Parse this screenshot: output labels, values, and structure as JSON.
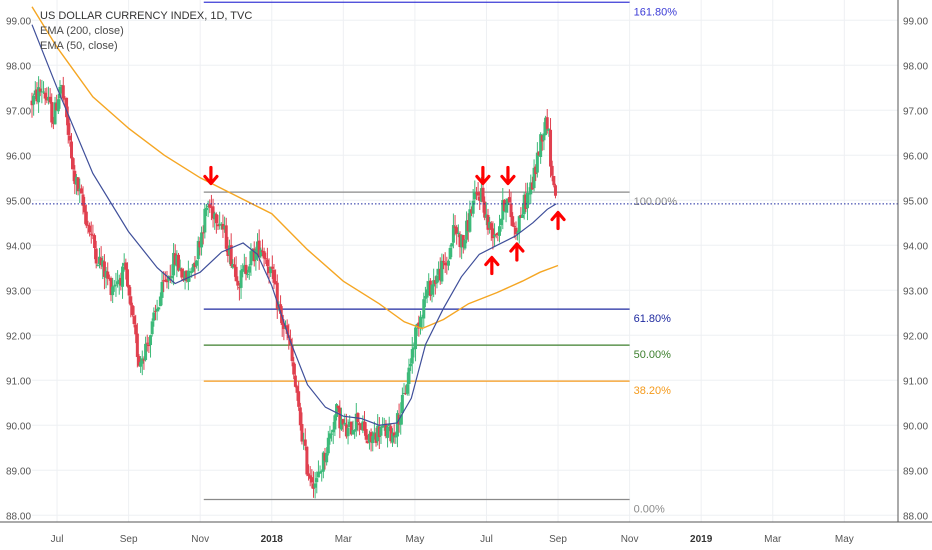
{
  "legend": {
    "title": "US DOLLAR CURRENCY INDEX, 1D, TVC",
    "ema200": "EMA (200, close)",
    "ema50": "EMA (50, close)"
  },
  "colors": {
    "up": "#3dba7a",
    "down": "#e0404f",
    "ema200": "#f5a623",
    "ema50": "#3f4f9a",
    "fib_1618": "#3b3bd6",
    "fib_100": "#8a8a8a",
    "fib_618": "#1f2aa0",
    "fib_50": "#3d7f2d",
    "fib_382": "#f59a1b",
    "fib_0": "#8a8a8a",
    "arrow": "#ff0000",
    "current_price_line": "#1f2aa0",
    "grid": "#eef0f3"
  },
  "chart_data": {
    "type": "candlestick",
    "instrument": "US DOLLAR CURRENCY INDEX",
    "timeframe": "1D",
    "source": "TVC",
    "x_ticks": [
      {
        "label": "Jul",
        "bold": false
      },
      {
        "label": "Sep",
        "bold": false
      },
      {
        "label": "Nov",
        "bold": false
      },
      {
        "label": "2018",
        "bold": true
      },
      {
        "label": "Mar",
        "bold": false
      },
      {
        "label": "May",
        "bold": false
      },
      {
        "label": "Jul",
        "bold": false
      },
      {
        "label": "Sep",
        "bold": false
      },
      {
        "label": "Nov",
        "bold": false
      },
      {
        "label": "2019",
        "bold": true
      },
      {
        "label": "Mar",
        "bold": false
      },
      {
        "label": "May",
        "bold": false
      }
    ],
    "x_tick_months": [
      1.0,
      3.0,
      5.0,
      7.0,
      9.0,
      11.0,
      13.0,
      15.0,
      17.0,
      19.0,
      21.0,
      23.0
    ],
    "x_range_months": [
      0.3,
      24.5
    ],
    "y_ticks": [
      "99.00",
      "98.00",
      "97.00",
      "96.00",
      "95.00",
      "94.00",
      "93.00",
      "92.00",
      "91.00",
      "90.00",
      "89.00",
      "88.00"
    ],
    "y_tick_values": [
      99,
      98,
      97,
      96,
      95,
      94,
      93,
      92,
      91,
      90,
      89,
      88
    ],
    "ylim": [
      87.85,
      99.45
    ],
    "current_price": 94.92,
    "price_path": [
      [
        0.3,
        97.2
      ],
      [
        0.6,
        97.5
      ],
      [
        0.9,
        96.8
      ],
      [
        1.1,
        97.6
      ],
      [
        1.25,
        96.9
      ],
      [
        1.45,
        95.6
      ],
      [
        1.75,
        94.8
      ],
      [
        2.1,
        93.8
      ],
      [
        2.5,
        93.1
      ],
      [
        2.9,
        93.4
      ],
      [
        3.1,
        92.3
      ],
      [
        3.3,
        91.4
      ],
      [
        3.6,
        92.0
      ],
      [
        3.9,
        92.9
      ],
      [
        4.3,
        93.7
      ],
      [
        4.6,
        93.2
      ],
      [
        4.9,
        93.8
      ],
      [
        5.2,
        94.9
      ],
      [
        5.55,
        94.6
      ],
      [
        5.8,
        93.9
      ],
      [
        6.1,
        93.2
      ],
      [
        6.4,
        93.7
      ],
      [
        6.7,
        94.0
      ],
      [
        6.95,
        93.5
      ],
      [
        7.25,
        92.4
      ],
      [
        7.5,
        91.8
      ],
      [
        7.75,
        90.3
      ],
      [
        8.0,
        89.0
      ],
      [
        8.25,
        88.7
      ],
      [
        8.5,
        89.4
      ],
      [
        8.8,
        90.3
      ],
      [
        9.1,
        89.8
      ],
      [
        9.4,
        90.2
      ],
      [
        9.7,
        89.6
      ],
      [
        10.0,
        89.9
      ],
      [
        10.4,
        89.8
      ],
      [
        10.7,
        90.6
      ],
      [
        11.0,
        92.0
      ],
      [
        11.3,
        92.9
      ],
      [
        11.6,
        93.3
      ],
      [
        11.9,
        93.6
      ],
      [
        12.1,
        94.4
      ],
      [
        12.35,
        94.0
      ],
      [
        12.6,
        94.9
      ],
      [
        12.85,
        95.2
      ],
      [
        13.05,
        94.4
      ],
      [
        13.3,
        94.3
      ],
      [
        13.55,
        95.1
      ],
      [
        13.8,
        94.3
      ],
      [
        14.05,
        94.9
      ],
      [
        14.3,
        95.4
      ],
      [
        14.55,
        96.5
      ],
      [
        14.7,
        96.8
      ],
      [
        14.85,
        95.4
      ],
      [
        14.95,
        95.1
      ]
    ],
    "ema200_path": [
      [
        0.3,
        99.3
      ],
      [
        1.0,
        98.4
      ],
      [
        2.0,
        97.3
      ],
      [
        3.0,
        96.6
      ],
      [
        4.0,
        96.0
      ],
      [
        5.0,
        95.5
      ],
      [
        6.0,
        95.1
      ],
      [
        7.0,
        94.7
      ],
      [
        8.0,
        93.9
      ],
      [
        9.0,
        93.2
      ],
      [
        10.0,
        92.7
      ],
      [
        10.7,
        92.3
      ],
      [
        11.2,
        92.15
      ],
      [
        11.8,
        92.35
      ],
      [
        12.5,
        92.7
      ],
      [
        13.3,
        92.95
      ],
      [
        14.0,
        93.2
      ],
      [
        14.5,
        93.4
      ],
      [
        15.0,
        93.55
      ]
    ],
    "ema50_path": [
      [
        0.3,
        98.9
      ],
      [
        1.0,
        97.5
      ],
      [
        2.0,
        95.6
      ],
      [
        3.0,
        94.3
      ],
      [
        3.8,
        93.5
      ],
      [
        4.3,
        93.15
      ],
      [
        5.0,
        93.4
      ],
      [
        5.6,
        93.85
      ],
      [
        6.2,
        94.05
      ],
      [
        6.6,
        93.8
      ],
      [
        7.0,
        93.1
      ],
      [
        7.5,
        91.9
      ],
      [
        8.0,
        90.9
      ],
      [
        8.5,
        90.4
      ],
      [
        9.0,
        90.2
      ],
      [
        9.5,
        90.15
      ],
      [
        10.0,
        90.0
      ],
      [
        10.5,
        90.05
      ],
      [
        10.9,
        90.6
      ],
      [
        11.3,
        91.8
      ],
      [
        11.8,
        92.6
      ],
      [
        12.3,
        93.3
      ],
      [
        12.8,
        93.8
      ],
      [
        13.3,
        94.0
      ],
      [
        13.8,
        94.2
      ],
      [
        14.3,
        94.5
      ],
      [
        14.7,
        94.8
      ],
      [
        14.95,
        94.92
      ]
    ],
    "fibonacci": {
      "x_start_month": 5.1,
      "x_end_month": 17.0,
      "levels": [
        {
          "label": "161.80%",
          "value": 99.4,
          "color_key": "fib_1618"
        },
        {
          "label": "100.00%",
          "value": 95.18,
          "color_key": "fib_100"
        },
        {
          "label": "61.80%",
          "value": 92.58,
          "color_key": "fib_618"
        },
        {
          "label": "50.00%",
          "value": 91.78,
          "color_key": "fib_50"
        },
        {
          "label": "38.20%",
          "value": 90.98,
          "color_key": "fib_382"
        },
        {
          "label": "0.00%",
          "value": 88.35,
          "color_key": "fib_0"
        }
      ]
    },
    "annotations": [
      {
        "type": "arrow-down",
        "x_month": 5.3,
        "y_value": 95.55
      },
      {
        "type": "arrow-down",
        "x_month": 12.9,
        "y_value": 95.55
      },
      {
        "type": "arrow-down",
        "x_month": 13.6,
        "y_value": 95.55
      },
      {
        "type": "arrow-up",
        "x_month": 13.15,
        "y_value": 93.55
      },
      {
        "type": "arrow-up",
        "x_month": 13.85,
        "y_value": 93.85
      },
      {
        "type": "arrow-up",
        "x_month": 15.0,
        "y_value": 94.55
      }
    ]
  }
}
